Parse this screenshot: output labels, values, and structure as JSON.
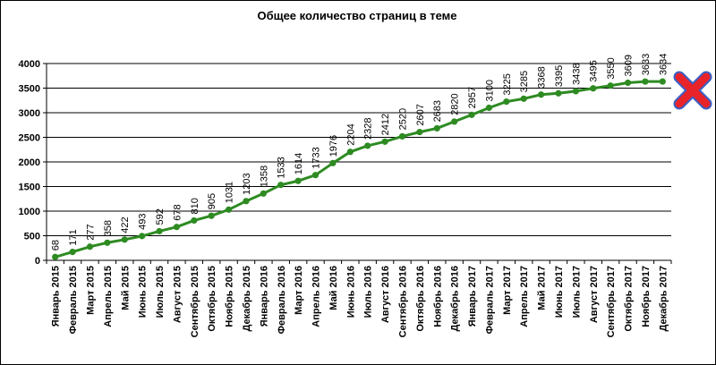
{
  "chart_data": {
    "type": "line",
    "title": "Общее количество страниц в теме",
    "xlabel": "",
    "ylabel": "",
    "ylim": [
      0,
      4000
    ],
    "yticks": [
      "0",
      "500",
      "1000",
      "1500",
      "2000",
      "2500",
      "3000",
      "3500",
      "4000"
    ],
    "grid": true,
    "legend": "none",
    "categories": [
      "Январь 2015",
      "Февраль 2015",
      "Март 2015",
      "Апрель 2015",
      "Май 2015",
      "Июнь 2015",
      "Июль 2015",
      "Август 2015",
      "Сентябрь 2015",
      "Октябрь 2015",
      "Ноябрь 2015",
      "Декабрь 2015",
      "Январь 2016",
      "Февраль 2016",
      "Март 2016",
      "Апрель 2016",
      "Май 2016",
      "Июнь 2016",
      "Июль 2016",
      "Август 2016",
      "Сентябрь 2016",
      "Октябрь 2016",
      "Ноябрь 2016",
      "Декабрь 2016",
      "Январь 2017",
      "Февраль 2017",
      "Март 2017",
      "Апрель 2017",
      "Май 2017",
      "Июнь 2017",
      "Июль 2017",
      "Август 2017",
      "Сентябрь 2017",
      "Октябрь 2017",
      "Ноябрь 2017",
      "Декабрь 2017"
    ],
    "series": [
      {
        "color": "#2e8b22",
        "values": [
          68,
          171,
          277,
          358,
          422,
          493,
          592,
          678,
          810,
          905,
          1031,
          1203,
          1358,
          1533,
          1614,
          1733,
          1976,
          2204,
          2328,
          2412,
          2520,
          2607,
          2683,
          2820,
          2957,
          3100,
          3225,
          3285,
          3368,
          3395,
          3438,
          3495,
          3550,
          3609,
          3633,
          3634
        ]
      }
    ],
    "marker_icon": "red-x-cross-icon",
    "marker_colors": {
      "fill": "#e8232a",
      "outline": "#3a5fc4"
    }
  }
}
